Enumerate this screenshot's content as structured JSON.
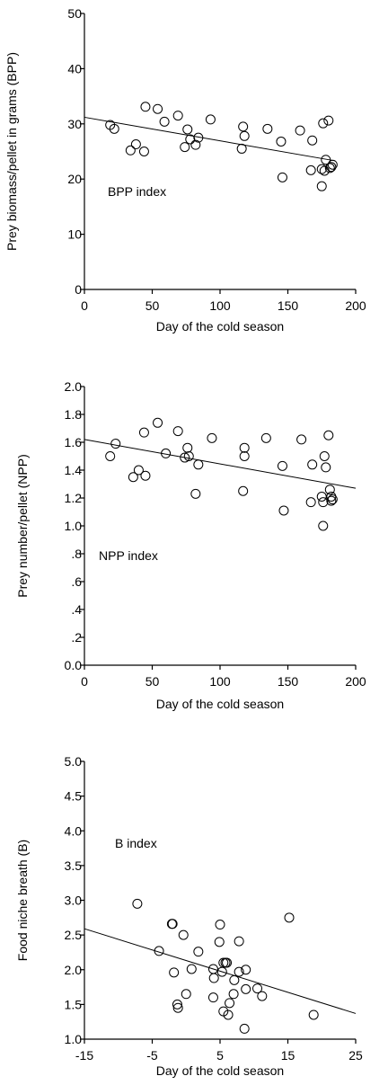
{
  "chart_data": [
    {
      "type": "scatter",
      "title": "",
      "annotation": "BPP index",
      "xlabel": "Day of the cold season",
      "ylabel": "Prey biomass/pellet in grams (BPP)",
      "xlim": [
        0,
        200
      ],
      "ylim": [
        0,
        50
      ],
      "x_ticks": [
        0,
        50,
        100,
        150,
        200
      ],
      "x_tick_labels": [
        "0",
        "50",
        "100",
        "150",
        "200"
      ],
      "y_ticks": [
        0,
        10,
        20,
        30,
        40,
        50
      ],
      "y_tick_labels": [
        "0",
        "10",
        "20",
        "30",
        "40",
        "50"
      ],
      "grid": false,
      "points": [
        [
          19,
          29.8
        ],
        [
          22,
          29.1
        ],
        [
          34,
          25.2
        ],
        [
          38,
          26.3
        ],
        [
          44,
          25.0
        ],
        [
          45,
          33.1
        ],
        [
          54,
          32.7
        ],
        [
          59,
          30.4
        ],
        [
          69,
          31.5
        ],
        [
          74,
          25.8
        ],
        [
          76,
          29.0
        ],
        [
          78,
          27.2
        ],
        [
          82,
          26.2
        ],
        [
          84,
          27.5
        ],
        [
          93,
          30.8
        ],
        [
          116,
          25.5
        ],
        [
          117,
          29.5
        ],
        [
          118,
          27.8
        ],
        [
          135,
          29.1
        ],
        [
          145,
          26.8
        ],
        [
          146,
          20.3
        ],
        [
          159,
          28.8
        ],
        [
          167,
          21.6
        ],
        [
          168,
          27.0
        ],
        [
          175,
          18.7
        ],
        [
          175,
          21.8
        ],
        [
          176,
          30.1
        ],
        [
          177,
          21.5
        ],
        [
          178,
          23.5
        ],
        [
          180,
          30.6
        ],
        [
          181,
          22.0
        ],
        [
          182,
          22.2
        ],
        [
          183,
          22.6
        ]
      ],
      "trendline": [
        [
          0,
          31.2
        ],
        [
          185,
          23.3
        ]
      ]
    },
    {
      "type": "scatter",
      "title": "",
      "annotation": "NPP index",
      "xlabel": "Day of the cold season",
      "ylabel": "Prey number/pellet (NPP)",
      "xlim": [
        0,
        200
      ],
      "ylim": [
        0,
        2
      ],
      "x_ticks": [
        0,
        50,
        100,
        150,
        200
      ],
      "x_tick_labels": [
        "0",
        "50",
        "100",
        "150",
        "200"
      ],
      "y_ticks": [
        0,
        0.2,
        0.4,
        0.6,
        0.8,
        1.0,
        1.2,
        1.4,
        1.6,
        1.8,
        2.0
      ],
      "y_tick_labels": [
        "0.0",
        ".2",
        ".4",
        ".6",
        ".8",
        "1.0",
        "1.2",
        "1.4",
        "1.6",
        "1.8",
        "2.0"
      ],
      "grid": false,
      "points": [
        [
          19,
          1.5
        ],
        [
          23,
          1.59
        ],
        [
          36,
          1.35
        ],
        [
          40,
          1.4
        ],
        [
          44,
          1.67
        ],
        [
          45,
          1.36
        ],
        [
          54,
          1.74
        ],
        [
          60,
          1.52
        ],
        [
          69,
          1.68
        ],
        [
          74,
          1.49
        ],
        [
          76,
          1.56
        ],
        [
          77,
          1.5
        ],
        [
          82,
          1.23
        ],
        [
          84,
          1.44
        ],
        [
          94,
          1.63
        ],
        [
          117,
          1.25
        ],
        [
          118,
          1.56
        ],
        [
          118,
          1.5
        ],
        [
          134,
          1.63
        ],
        [
          146,
          1.43
        ],
        [
          147,
          1.11
        ],
        [
          160,
          1.62
        ],
        [
          167,
          1.17
        ],
        [
          168,
          1.44
        ],
        [
          175,
          1.21
        ],
        [
          176,
          1.0
        ],
        [
          176,
          1.17
        ],
        [
          177,
          1.5
        ],
        [
          178,
          1.42
        ],
        [
          180,
          1.65
        ],
        [
          181,
          1.26
        ],
        [
          182,
          1.21
        ],
        [
          182,
          1.18
        ],
        [
          183,
          1.19
        ]
      ],
      "trendline": [
        [
          0,
          1.62
        ],
        [
          200,
          1.27
        ]
      ]
    },
    {
      "type": "scatter",
      "title": "",
      "annotation": "B index",
      "xlabel": "Day of the cold season",
      "ylabel": "Food niche breath (B)",
      "xlim": [
        -15,
        25
      ],
      "ylim": [
        1,
        5
      ],
      "x_ticks": [
        -15,
        -5,
        5,
        15,
        25
      ],
      "x_tick_labels": [
        "-15",
        "-5",
        "5",
        "15",
        "25"
      ],
      "y_ticks": [
        1.0,
        1.5,
        2.0,
        2.5,
        3.0,
        3.5,
        4.0,
        4.5,
        5.0
      ],
      "y_tick_labels": [
        "1.0",
        "1.5",
        "2.0",
        "2.5",
        "3.0",
        "3.5",
        "4.0",
        "4.5",
        "5.0"
      ],
      "grid": false,
      "points": [
        [
          -7.2,
          2.95
        ],
        [
          -4.0,
          2.27
        ],
        [
          -2.1,
          2.66
        ],
        [
          -2.0,
          2.66
        ],
        [
          -1.8,
          1.96
        ],
        [
          -1.3,
          1.5
        ],
        [
          -1.2,
          1.45
        ],
        [
          -0.4,
          2.5
        ],
        [
          0.0,
          1.65
        ],
        [
          0.8,
          2.01
        ],
        [
          1.8,
          2.26
        ],
        [
          4.0,
          2.01
        ],
        [
          4.1,
          1.88
        ],
        [
          4.0,
          1.6
        ],
        [
          4.9,
          2.4
        ],
        [
          5.0,
          2.65
        ],
        [
          5.3,
          1.97
        ],
        [
          5.5,
          1.4
        ],
        [
          5.5,
          2.1
        ],
        [
          5.8,
          2.1
        ],
        [
          6.0,
          2.1
        ],
        [
          6.2,
          1.35
        ],
        [
          6.4,
          1.52
        ],
        [
          7.0,
          1.65
        ],
        [
          7.1,
          1.85
        ],
        [
          7.8,
          2.41
        ],
        [
          7.8,
          1.97
        ],
        [
          8.6,
          1.15
        ],
        [
          8.8,
          1.72
        ],
        [
          8.8,
          2.0
        ],
        [
          10.5,
          1.73
        ],
        [
          11.2,
          1.62
        ],
        [
          15.2,
          2.75
        ],
        [
          18.8,
          1.35
        ]
      ],
      "trendline": [
        [
          -15,
          2.59
        ],
        [
          25,
          1.37
        ]
      ]
    }
  ]
}
